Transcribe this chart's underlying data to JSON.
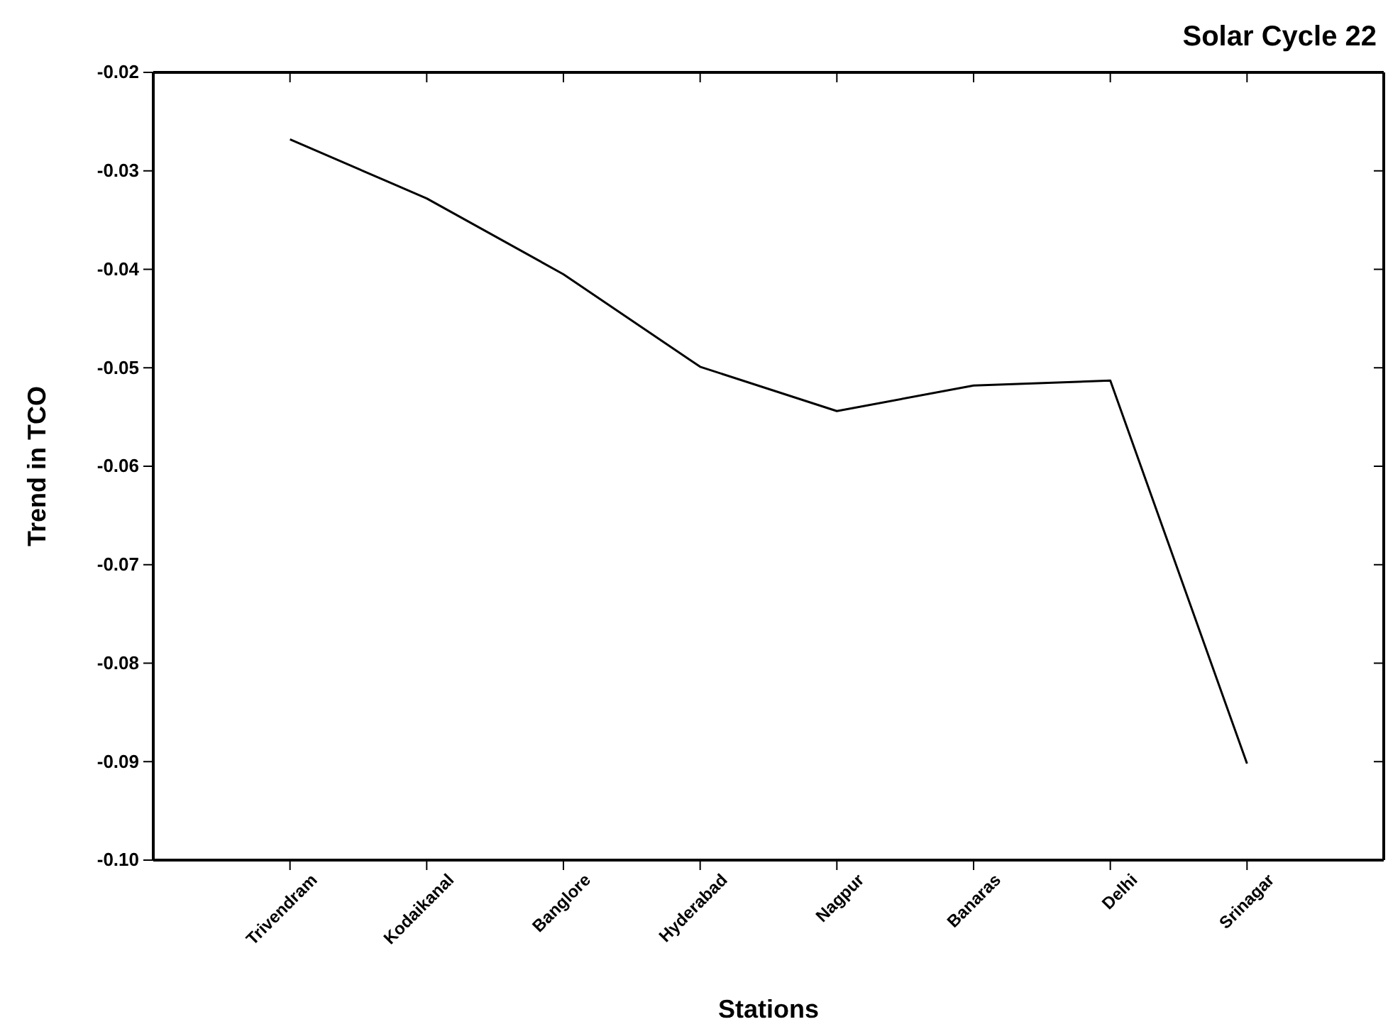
{
  "chart_data": {
    "type": "line",
    "title": "Solar Cycle 22",
    "xlabel": "Stations",
    "ylabel": "Trend in TCO",
    "categories": [
      "Trivendram",
      "Kodaikanal",
      "Banglore",
      "Hyderabad",
      "Nagpur",
      "Banaras",
      "Delhi",
      "Srinagar"
    ],
    "series": [
      {
        "color": "#000000",
        "values": [
          -0.0268,
          -0.0328,
          -0.0405,
          -0.0499,
          -0.0544,
          -0.0518,
          -0.0513,
          -0.0902
        ]
      }
    ],
    "ylim": [
      -0.1,
      -0.02
    ],
    "yticks": [
      -0.02,
      -0.03,
      -0.04,
      -0.05,
      -0.06,
      -0.07,
      -0.08,
      -0.09,
      {
        "value": -0.1,
        "label": "-0.10"
      }
    ],
    "grid": false,
    "marker": "none",
    "line_style": "solid"
  }
}
